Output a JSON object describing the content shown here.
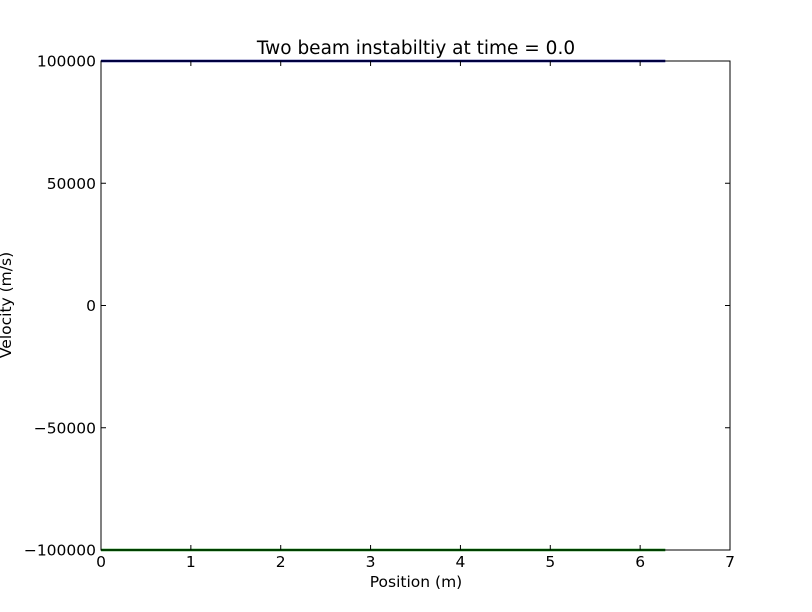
{
  "chart_data": {
    "type": "line",
    "title": "Two beam instabiltiy at time = 0.0",
    "xlabel": "Position (m)",
    "ylabel": "Velocity (m/s)",
    "xlim": [
      0,
      7
    ],
    "ylim": [
      -100000,
      100000
    ],
    "xticks": [
      0,
      1,
      2,
      3,
      4,
      5,
      6,
      7
    ],
    "yticks": [
      -100000,
      -50000,
      0,
      50000,
      100000
    ],
    "ytick_labels": [
      "−100000",
      "−50000",
      "0",
      "50000",
      "100000"
    ],
    "grid": false,
    "legend": "none",
    "series": [
      {
        "x": [
          0,
          6.28
        ],
        "y": [
          100000,
          100000
        ],
        "color": "#00007f"
      },
      {
        "x": [
          0,
          6.28
        ],
        "y": [
          -100000,
          -100000
        ],
        "color": "#007f00"
      }
    ]
  }
}
